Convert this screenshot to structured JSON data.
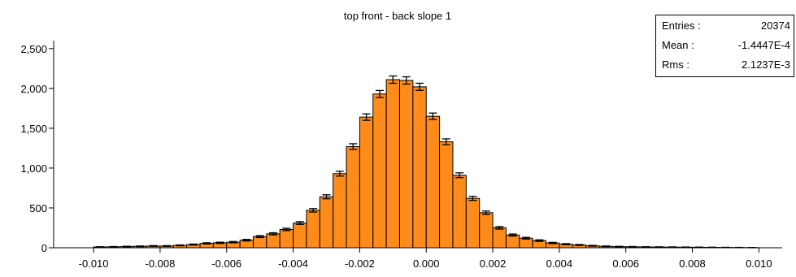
{
  "chart_data": {
    "type": "bar",
    "title": "top front - back slope 1",
    "xlabel": "",
    "ylabel": "",
    "xlim": [
      -0.0112,
      0.0107
    ],
    "ylim": [
      0,
      2600
    ],
    "grid": false,
    "x_ticks": [
      -0.01,
      -0.008,
      -0.006,
      -0.004,
      -0.002,
      0.0,
      0.002,
      0.004,
      0.006,
      0.008,
      0.01
    ],
    "x_tick_labels": [
      "-0.010",
      "-0.008",
      "-0.006",
      "-0.004",
      "-0.002",
      "0.000",
      "0.002",
      "0.004",
      "0.006",
      "0.008",
      "0.010"
    ],
    "y_ticks": [
      0,
      500,
      1000,
      1500,
      2000,
      2500
    ],
    "y_tick_labels": [
      "0",
      "500",
      "1,000",
      "1,500",
      "2,000",
      "2,500"
    ],
    "bin_edges_start": -0.01,
    "bin_width": 0.0004,
    "values": [
      10,
      12,
      15,
      18,
      22,
      22,
      30,
      40,
      55,
      62,
      70,
      95,
      140,
      175,
      230,
      310,
      470,
      640,
      930,
      1270,
      1640,
      1930,
      2110,
      2100,
      2020,
      1650,
      1330,
      910,
      620,
      440,
      250,
      160,
      120,
      90,
      60,
      45,
      35,
      25,
      18,
      14,
      12,
      10,
      9,
      8,
      7,
      6,
      5,
      4,
      3,
      2
    ],
    "bar_color": "#ff8c1a",
    "edge_color": "#000000",
    "error_bars": true,
    "legend": "top-right"
  },
  "stats": {
    "entries_label": "Entries :",
    "entries_value": "20374",
    "mean_label": "Mean :",
    "mean_value": "-1.4447E-4",
    "rms_label": "Rms :",
    "rms_value": "2.1237E-3"
  }
}
